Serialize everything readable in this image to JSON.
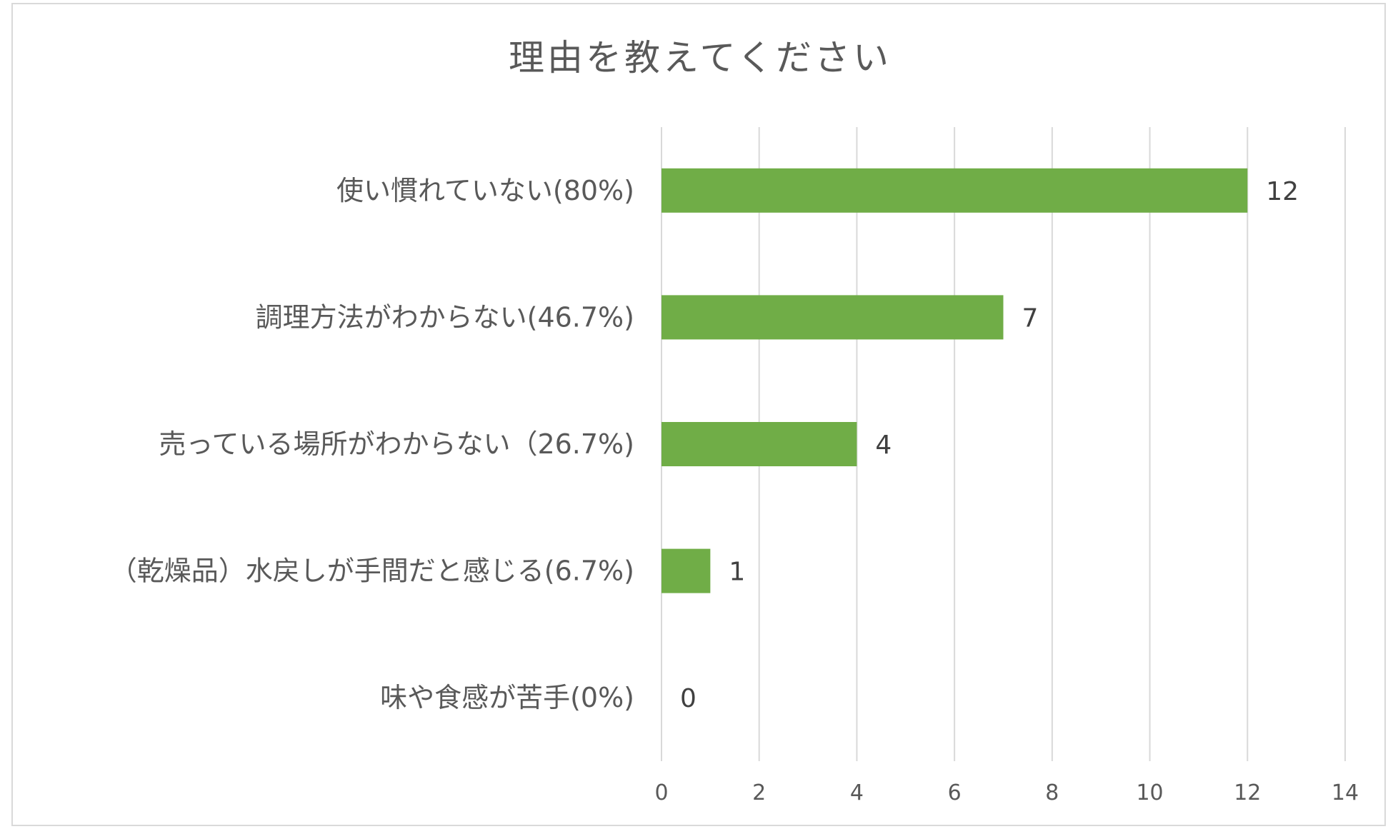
{
  "chart_data": {
    "type": "bar",
    "orientation": "horizontal",
    "title": "理由を教えてください",
    "categories": [
      "使い慣れていない(80%)",
      "調理方法がわからない(46.7%)",
      "売っている場所がわからない（26.7%)",
      "（乾燥品）水戻しが手間だと感じる(6.7%)",
      "味や食感が苦手(0%)"
    ],
    "values": [
      12,
      7,
      4,
      1,
      0
    ],
    "data_labels": [
      "12",
      "7",
      "4",
      "1",
      "0"
    ],
    "xlim": [
      0,
      14
    ],
    "x_ticks": [
      0,
      2,
      4,
      6,
      8,
      10,
      12,
      14
    ],
    "grid": "vertical",
    "legend": "none",
    "bar_color": "#70ad47"
  }
}
